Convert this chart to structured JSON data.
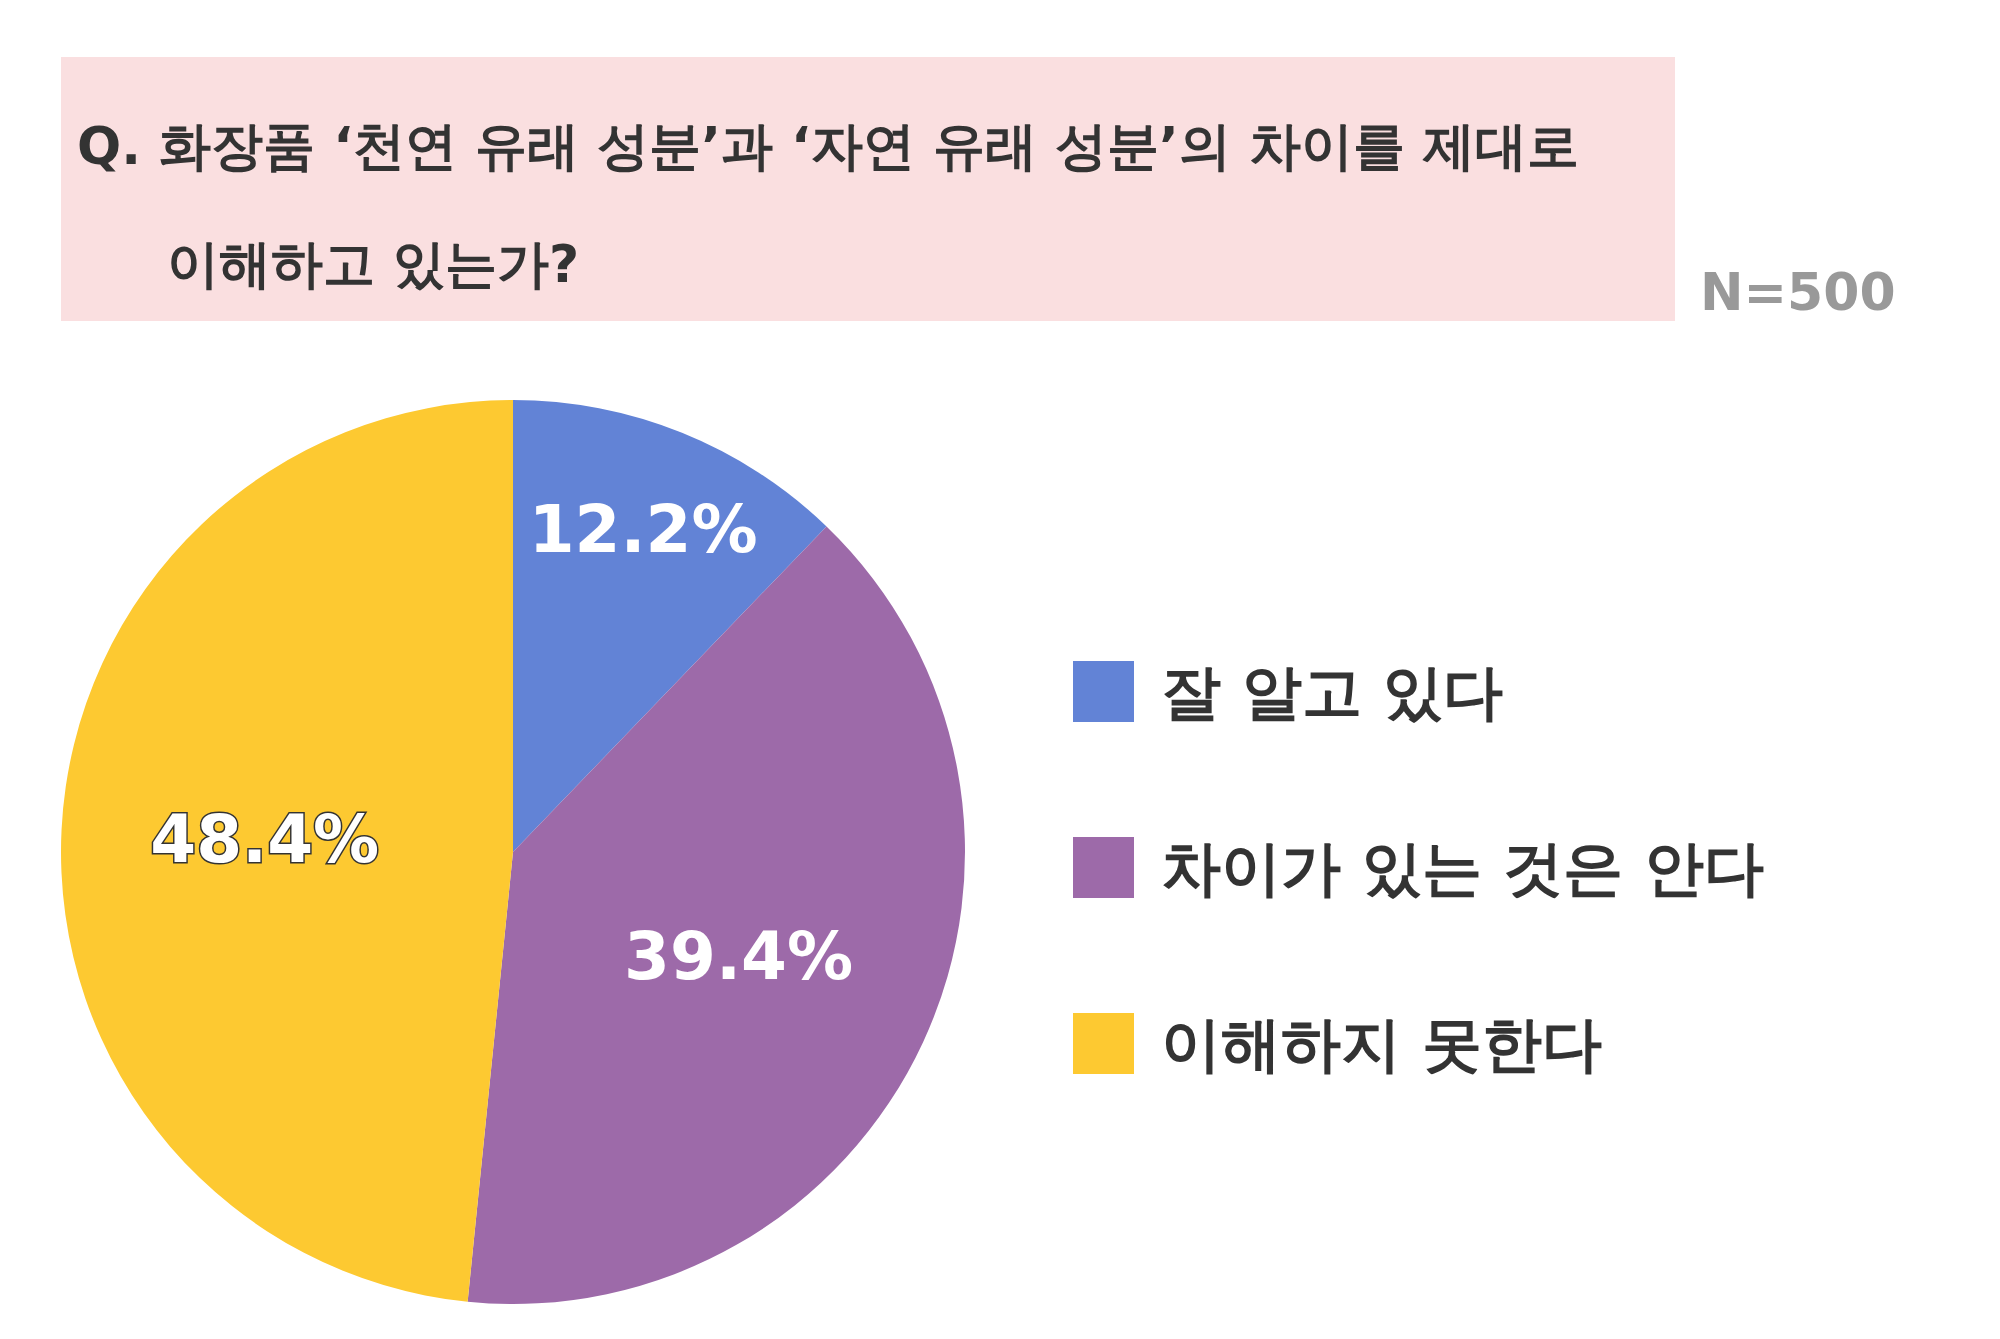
{
  "chart_data": {
    "type": "pie",
    "title": "Q. 화장품 ‘천연 유래 성분’과 ‘자연 유래 성분’의 차이를 제대로 이해하고 있는가?",
    "annotations": [
      "N=500"
    ],
    "categories": [
      "잘 알고 있다",
      "차이가 있는 것은 안다",
      "이해하지 못한다"
    ],
    "values": [
      12.2,
      39.4,
      48.4
    ],
    "value_labels": [
      "12.2%",
      "39.4%",
      "48.4%"
    ],
    "colors": [
      "#6283d6",
      "#9d6aa9",
      "#fdc931"
    ],
    "legend": "right"
  }
}
